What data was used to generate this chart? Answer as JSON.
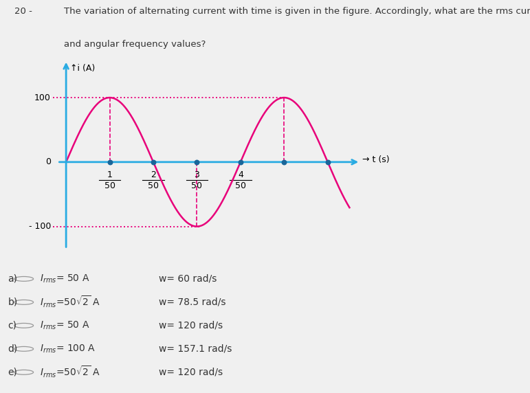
{
  "title_question": "The variation of alternating current with time is given in the figure. Accordingly, what are the rms current",
  "title_question2": "and angular frequency values?",
  "question_number": "20 -",
  "amplitude": 100,
  "period": 0.08,
  "x_tick_vals": [
    0.02,
    0.04,
    0.06,
    0.08
  ],
  "x_tick_labels_num": [
    "1",
    "2",
    "3",
    "4"
  ],
  "x_tick_labels_den": [
    "50",
    "50",
    "50",
    "50"
  ],
  "xlim": [
    -0.006,
    0.135
  ],
  "ylim": [
    -145,
    160
  ],
  "wave_color": "#e8007a",
  "axis_color": "#29abe2",
  "dot_color": "#1a6699",
  "ref_line_color": "#e8007a",
  "bg_color": "#ffffff",
  "outer_bg": "#f0f0f0",
  "dot_positions": [
    0.02,
    0.04,
    0.06,
    0.08,
    0.1,
    0.12
  ],
  "choice_labels": [
    "a)",
    "b)",
    "c)",
    "d)",
    "e)"
  ],
  "choice_irms": [
    "I_{rms}= 50 A",
    "I_{rms}=50\\sqrt{2} A",
    "I_{rms}= 50 A",
    "I_{rms}= 100 A",
    "I_{rms}=50\\sqrt{2} A"
  ],
  "choice_omega": [
    "w= 60 rad/s",
    "w= 78.5 rad/s",
    "w= 120 rad/s",
    "w= 157.1 rad/s",
    "w= 120 rad/s"
  ]
}
